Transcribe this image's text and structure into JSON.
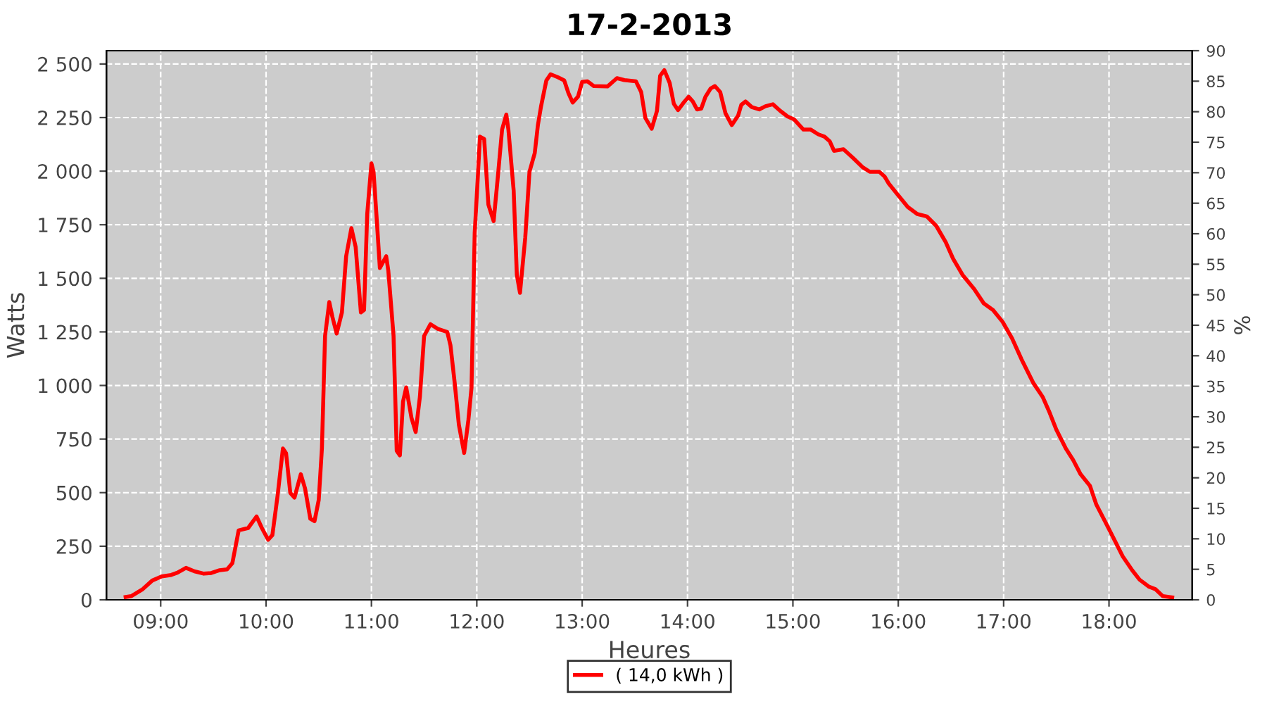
{
  "chart_data": {
    "type": "line",
    "title": "17-2-2013",
    "xlabel": "Heures",
    "ylabel": "Watts",
    "y2label": "%",
    "xlim": [
      8.485,
      18.79
    ],
    "xticks": [
      {
        "value": 9,
        "label": "09:00"
      },
      {
        "value": 10,
        "label": "10:00"
      },
      {
        "value": 11,
        "label": "11:00"
      },
      {
        "value": 12,
        "label": "12:00"
      },
      {
        "value": 13,
        "label": "13:00"
      },
      {
        "value": 14,
        "label": "14:00"
      },
      {
        "value": 15,
        "label": "15:00"
      },
      {
        "value": 16,
        "label": "16:00"
      },
      {
        "value": 17,
        "label": "17:00"
      },
      {
        "value": 18,
        "label": "18:00"
      }
    ],
    "ylim": [
      0,
      2562
    ],
    "yticks": [
      0,
      250,
      500,
      750,
      {
        "value": 1000,
        "label": "1 000"
      },
      {
        "value": 1250,
        "label": "1 250"
      },
      {
        "value": 1500,
        "label": "1 500"
      },
      {
        "value": 1750,
        "label": "1 750"
      },
      {
        "value": 2000,
        "label": "2 000"
      },
      {
        "value": 2250,
        "label": "2 250"
      },
      {
        "value": 2500,
        "label": "2 500"
      }
    ],
    "y2lim": [
      0,
      90
    ],
    "y2ticks": [
      0,
      5,
      10,
      15,
      20,
      25,
      30,
      35,
      40,
      45,
      50,
      55,
      60,
      65,
      70,
      75,
      80,
      85,
      90
    ],
    "grid": true,
    "legend": "bottom",
    "marker": "none",
    "line_style": "solid",
    "series": [
      {
        "name": "( 14,0 kWh )",
        "color": "#ff0000",
        "x": [
          8.667,
          8.72,
          8.83,
          8.92,
          9.01,
          9.1,
          9.16,
          9.24,
          9.32,
          9.41,
          9.48,
          9.56,
          9.63,
          9.68,
          9.74,
          9.83,
          9.91,
          9.96,
          10.02,
          10.06,
          10.11,
          10.16,
          10.19,
          10.23,
          10.27,
          10.33,
          10.37,
          10.42,
          10.46,
          10.5,
          10.53,
          10.56,
          10.6,
          10.63,
          10.67,
          10.72,
          10.76,
          10.81,
          10.85,
          10.9,
          10.93,
          10.96,
          11.0,
          11.02,
          11.05,
          11.08,
          11.14,
          11.16,
          11.21,
          11.24,
          11.27,
          11.3,
          11.33,
          11.38,
          11.42,
          11.46,
          11.5,
          11.56,
          11.63,
          11.72,
          11.75,
          11.79,
          11.83,
          11.88,
          11.92,
          11.95,
          11.98,
          12.01,
          12.03,
          12.07,
          12.11,
          12.16,
          12.2,
          12.24,
          12.28,
          12.3,
          12.35,
          12.38,
          12.41,
          12.46,
          12.5,
          12.55,
          12.58,
          12.61,
          12.66,
          12.7,
          12.77,
          12.83,
          12.87,
          12.91,
          12.96,
          13.0,
          13.05,
          13.11,
          13.24,
          13.33,
          13.4,
          13.51,
          13.56,
          13.6,
          13.66,
          13.71,
          13.74,
          13.78,
          13.83,
          13.87,
          13.91,
          13.96,
          14.01,
          14.05,
          14.09,
          14.13,
          14.17,
          14.22,
          14.26,
          14.31,
          14.36,
          14.42,
          14.48,
          14.51,
          14.55,
          14.61,
          14.68,
          14.74,
          14.81,
          14.88,
          14.95,
          15.01,
          15.1,
          15.17,
          15.24,
          15.3,
          15.35,
          15.39,
          15.48,
          15.57,
          15.66,
          15.73,
          15.82,
          15.87,
          15.91,
          16.0,
          16.09,
          16.18,
          16.27,
          16.36,
          16.45,
          16.52,
          16.61,
          16.72,
          16.81,
          16.9,
          16.99,
          17.08,
          17.17,
          17.28,
          17.37,
          17.43,
          17.5,
          17.59,
          17.66,
          17.73,
          17.82,
          17.88,
          17.95,
          18.04,
          18.13,
          18.22,
          18.29,
          18.38,
          18.44,
          18.51,
          18.6
        ],
        "values": [
          13,
          17,
          50,
          90,
          109,
          116,
          127,
          149,
          133,
          122,
          125,
          138,
          142,
          171,
          324,
          335,
          389,
          335,
          280,
          302,
          488,
          706,
          684,
          499,
          477,
          586,
          520,
          378,
          367,
          466,
          706,
          1231,
          1389,
          1319,
          1242,
          1341,
          1603,
          1734,
          1647,
          1341,
          1352,
          1800,
          2036,
          1997,
          1778,
          1548,
          1603,
          1537,
          1231,
          695,
          674,
          925,
          991,
          849,
          783,
          947,
          1231,
          1286,
          1264,
          1249,
          1188,
          1013,
          816,
          685,
          838,
          991,
          1712,
          1975,
          2161,
          2150,
          1844,
          1767,
          1975,
          2194,
          2264,
          2194,
          1909,
          1516,
          1432,
          1691,
          1997,
          2084,
          2215,
          2303,
          2423,
          2452,
          2438,
          2423,
          2364,
          2320,
          2347,
          2417,
          2419,
          2397,
          2395,
          2434,
          2425,
          2419,
          2369,
          2248,
          2198,
          2281,
          2445,
          2471,
          2412,
          2314,
          2285,
          2318,
          2347,
          2325,
          2288,
          2292,
          2347,
          2386,
          2397,
          2369,
          2270,
          2215,
          2259,
          2309,
          2325,
          2299,
          2288,
          2303,
          2312,
          2281,
          2255,
          2242,
          2194,
          2194,
          2172,
          2161,
          2139,
          2095,
          2102,
          2062,
          2019,
          1997,
          1997,
          1975,
          1942,
          1887,
          1833,
          1800,
          1789,
          1745,
          1669,
          1592,
          1516,
          1450,
          1384,
          1352,
          1297,
          1220,
          1122,
          1013,
          947,
          881,
          794,
          706,
          652,
          586,
          531,
          444,
          378,
          291,
          203,
          138,
          94,
          61,
          50,
          17,
          11
        ]
      }
    ]
  }
}
